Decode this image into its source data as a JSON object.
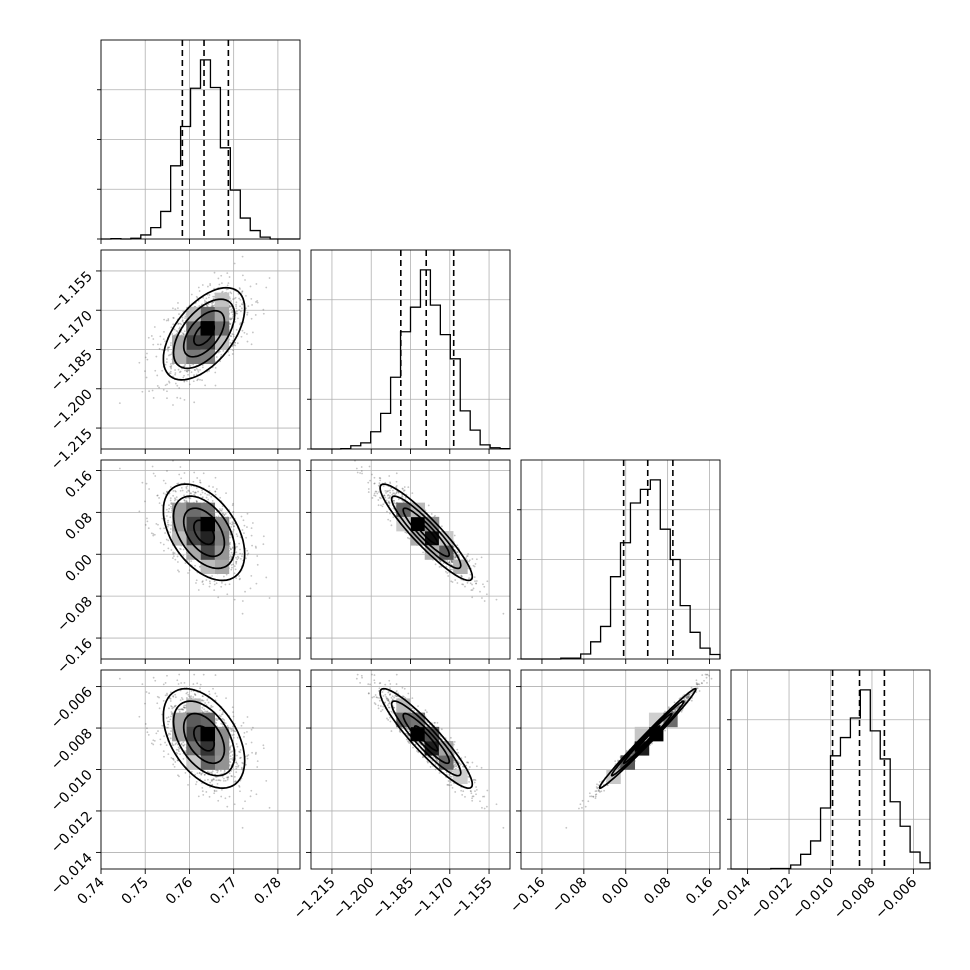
{
  "chart_data": {
    "type": "corner",
    "parameters": [
      {
        "range": [
          0.74,
          0.785
        ],
        "ticks": [
          "0.74",
          "0.75",
          "0.76",
          "0.77",
          "0.78"
        ],
        "tick_values": [
          0.74,
          0.75,
          0.76,
          0.77,
          0.78
        ],
        "mean": 0.7633,
        "sd": 0.0046,
        "quantiles": [
          0.7584,
          0.7633,
          0.7688
        ]
      },
      {
        "range": [
          -1.223,
          -1.147
        ],
        "ticks": [
          "−1.215",
          "−1.200",
          "−1.185",
          "−1.170",
          "−1.155"
        ],
        "tick_values": [
          -1.215,
          -1.2,
          -1.185,
          -1.17,
          -1.155
        ],
        "mean": -1.179,
        "sd": 0.0088,
        "quantiles": [
          -1.1887,
          -1.179,
          -1.1685
        ]
      },
      {
        "range": [
          -0.2,
          0.18
        ],
        "ticks": [
          "−0.16",
          "−0.08",
          "0.00",
          "0.08",
          "0.16"
        ],
        "tick_values": [
          -0.16,
          -0.08,
          0.0,
          0.08,
          0.16
        ],
        "mean": 0.042,
        "sd": 0.046,
        "quantiles": [
          -0.004,
          0.042,
          0.09
        ]
      },
      {
        "range": [
          -0.0148,
          -0.0052
        ],
        "ticks": [
          "−0.014",
          "−0.012",
          "−0.010",
          "−0.008",
          "−0.006"
        ],
        "tick_values": [
          -0.014,
          -0.012,
          -0.01,
          -0.008,
          -0.006
        ],
        "mean": -0.0085,
        "sd": 0.0012,
        "quantiles": [
          -0.0099,
          -0.0086,
          -0.0074
        ]
      }
    ],
    "correlations": [
      [
        1,
        0.55,
        -0.45,
        -0.45
      ],
      [
        0.55,
        1,
        -0.92,
        -0.92
      ],
      [
        -0.45,
        -0.92,
        1,
        0.99
      ],
      [
        -0.45,
        -0.92,
        0.99,
        1
      ]
    ],
    "histogram_bins": 20,
    "quantile_levels": [
      0.16,
      0.5,
      0.84
    ],
    "contour_levels_sigma": [
      0.5,
      1.0,
      1.5,
      2.0
    ],
    "grid": true,
    "colors": {
      "samples": "#5a5a5a",
      "lines": "#000000",
      "grid": "#b0b0b0"
    }
  }
}
